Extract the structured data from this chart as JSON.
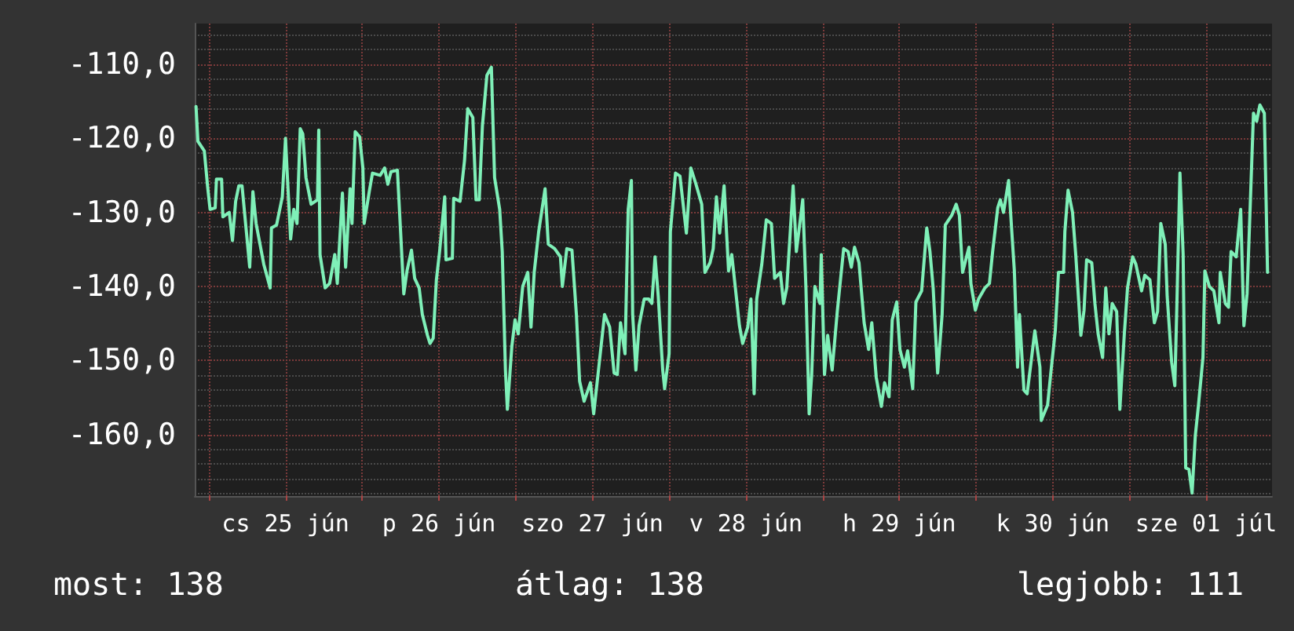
{
  "chart_data": {
    "type": "line",
    "xlim": [
      "--06-24T21:48",
      "--07-01T22:18"
    ],
    "ylim": [
      -168.3,
      -104.5
    ],
    "xticks": [
      {
        "value": "--06-25T00:00",
        "label": null
      },
      {
        "value": "--06-25T12:00",
        "label": "cs 25 jún"
      },
      {
        "value": "--06-26T00:00",
        "label": null
      },
      {
        "value": "--06-26T12:00",
        "label": "p 26 jún"
      },
      {
        "value": "--06-27T00:00",
        "label": null
      },
      {
        "value": "--06-27T12:00",
        "label": "szo 27 jún"
      },
      {
        "value": "--06-28T00:00",
        "label": null
      },
      {
        "value": "--06-28T12:00",
        "label": "v 28 jún"
      },
      {
        "value": "--06-29T00:00",
        "label": null
      },
      {
        "value": "--06-29T12:00",
        "label": "h 29 jún"
      },
      {
        "value": "--06-30T00:00",
        "label": null
      },
      {
        "value": "--06-30T12:00",
        "label": "k 30 jún"
      },
      {
        "value": "--07-01T00:00",
        "label": null
      },
      {
        "value": "--07-01T12:00",
        "label": "sze 01 júl"
      }
    ],
    "yticks": [
      {
        "value": -160,
        "label": "-160,0"
      },
      {
        "value": -150,
        "label": "-150,0"
      },
      {
        "value": -140,
        "label": "-140,0"
      },
      {
        "value": -130,
        "label": "-130,0"
      },
      {
        "value": -120,
        "label": "-120,0"
      },
      {
        "value": -110,
        "label": "-110,0"
      }
    ],
    "grid": true,
    "marker": "none",
    "line_style": "solid",
    "annotations": [
      "most: 138",
      "átlag: 138",
      "legjobb: 111"
    ],
    "series": [
      {
        "color": "#7ff0b8",
        "x": [
          "--06-24T22:00",
          "--06-24T22:18",
          "--06-24T23:18",
          "--06-24T23:48",
          "--06-25T00:12",
          "--06-25T01:00",
          "--06-25T01:12",
          "--06-25T02:00",
          "--06-25T02:12",
          "--06-25T03:12",
          "--06-25T03:42",
          "--06-25T04:12",
          "--06-25T04:42",
          "--06-25T05:12",
          "--06-25T05:42",
          "--06-25T06:24",
          "--06-25T06:54",
          "--06-25T07:24",
          "--06-25T08:36",
          "--06-25T09:36",
          "--06-25T09:48",
          "--06-25T10:36",
          "--06-25T11:30",
          "--06-25T12:00",
          "--06-25T12:18",
          "--06-25T12:48",
          "--06-25T13:18",
          "--06-25T13:48",
          "--06-25T14:18",
          "--06-25T14:42",
          "--06-25T15:12",
          "--06-25T16:00",
          "--06-25T17:00",
          "--06-25T17:12",
          "--06-25T17:24",
          "--06-25T18:12",
          "--06-25T18:54",
          "--06-25T19:42",
          "--06-25T20:06",
          "--06-25T20:54",
          "--06-25T21:24",
          "--06-25T22:06",
          "--06-25T22:24",
          "--06-25T22:54",
          "--06-25T23:36",
          "--06-26T00:06",
          "--06-26T00:18",
          "--06-26T01:06",
          "--06-26T01:36",
          "--06-26T02:48",
          "--06-26T03:30",
          "--06-26T04:00",
          "--06-26T04:30",
          "--06-26T05:30",
          "--06-26T06:00",
          "--06-26T06:30",
          "--06-26T07:00",
          "--06-26T07:42",
          "--06-26T08:12",
          "--06-26T08:54",
          "--06-26T09:24",
          "--06-26T10:12",
          "--06-26T10:36",
          "--06-26T11:06",
          "--06-26T11:36",
          "--06-26T12:06",
          "--06-26T12:54",
          "--06-26T13:06",
          "--06-26T14:06",
          "--06-26T14:18",
          "--06-26T15:18",
          "--06-26T16:00",
          "--06-26T16:30",
          "--06-26T17:18",
          "--06-26T17:48",
          "--06-26T18:18",
          "--06-26T18:48",
          "--06-26T19:30",
          "--06-26T20:12",
          "--06-26T20:42",
          "--06-26T21:30",
          "--06-26T21:54",
          "--06-26T22:24",
          "--06-26T22:42",
          "--06-26T23:24",
          "--06-26T23:54",
          "--06-27T00:24",
          "--06-27T01:06",
          "--06-27T01:54",
          "--06-27T02:24",
          "--06-27T02:54",
          "--06-27T03:36",
          "--06-27T04:36",
          "--06-27T05:06",
          "--06-27T06:06",
          "--06-27T07:00",
          "--06-27T07:18",
          "--06-27T08:00",
          "--06-27T08:48",
          "--06-27T09:30",
          "--06-27T10:00",
          "--06-27T10:42",
          "--06-27T11:42",
          "--06-27T12:12",
          "--06-27T12:54",
          "--06-27T13:54",
          "--06-27T14:42",
          "--06-27T15:24",
          "--06-27T15:54",
          "--06-27T16:24",
          "--06-27T17:06",
          "--06-27T17:36",
          "--06-27T18:06",
          "--06-27T18:18",
          "--06-27T18:48",
          "--06-27T19:18",
          "--06-27T20:06",
          "--06-27T20:48",
          "--06-27T21:18",
          "--06-27T21:48",
          "--06-27T22:18",
          "--06-27T23:00",
          "--06-27T23:18",
          "--06-28T00:00",
          "--06-28T00:12",
          "--06-28T01:00",
          "--06-28T01:42",
          "--06-28T02:42",
          "--06-28T03:24",
          "--06-28T04:12",
          "--06-28T05:06",
          "--06-28T05:36",
          "--06-28T06:24",
          "--06-28T06:54",
          "--06-28T07:24",
          "--06-28T07:54",
          "--06-28T08:36",
          "--06-28T09:18",
          "--06-28T09:48",
          "--06-28T11:00",
          "--06-28T11:30",
          "--06-28T12:18",
          "--06-28T12:48",
          "--06-28T13:18",
          "--06-28T13:42",
          "--06-28T14:30",
          "--06-28T15:12",
          "--06-28T16:00",
          "--06-28T16:30",
          "--06-28T17:24",
          "--06-28T17:54",
          "--06-28T18:24",
          "--06-28T19:24",
          "--06-28T19:54",
          "--06-28T20:54",
          "--06-28T21:24",
          "--06-28T21:54",
          "--06-28T22:18",
          "--06-28T22:48",
          "--06-28T23:36",
          "--06-28T23:48",
          "--06-29T00:18",
          "--06-29T00:48",
          "--06-29T01:30",
          "--06-29T02:18",
          "--06-29T03:18",
          "--06-29T04:00",
          "--06-29T04:30",
          "--06-29T05:00",
          "--06-29T05:42",
          "--06-29T06:30",
          "--06-29T07:12",
          "--06-29T07:42",
          "--06-29T08:24",
          "--06-29T09:12",
          "--06-29T09:42",
          "--06-29T10:24",
          "--06-29T10:54",
          "--06-29T11:36",
          "--06-29T12:06",
          "--06-29T12:48",
          "--06-29T13:18",
          "--06-29T14:06",
          "--06-29T14:36",
          "--06-29T15:30",
          "--06-29T16:18",
          "--06-29T16:48",
          "--06-29T17:18",
          "--06-29T18:00",
          "--06-29T18:42",
          "--06-29T19:12",
          "--06-29T20:12",
          "--06-29T20:54",
          "--06-29T21:24",
          "--06-29T21:54",
          "--06-29T22:54",
          "--06-29T23:12",
          "--06-29T23:54",
          "--06-30T00:24",
          "--06-30T01:24",
          "--06-30T02:06",
          "--06-30T02:36",
          "--06-30T03:24",
          "--06-30T03:48",
          "--06-30T04:18",
          "--06-30T05:06",
          "--06-30T05:36",
          "--06-30T06:00",
          "--06-30T06:30",
          "--06-30T06:48",
          "--06-30T07:30",
          "--06-30T08:00",
          "--06-30T08:42",
          "--06-30T09:12",
          "--06-30T10:00",
          "--06-30T10:12",
          "--06-30T11:12",
          "--06-30T11:42",
          "--06-30T12:24",
          "--06-30T12:54",
          "--06-30T13:42",
          "--06-30T13:54",
          "--06-30T14:24",
          "--06-30T15:06",
          "--06-30T15:36",
          "--06-30T16:24",
          "--06-30T16:54",
          "--06-30T17:18",
          "--06-30T18:06",
          "--06-30T18:36",
          "--06-30T19:06",
          "--06-30T19:48",
          "--06-30T20:18",
          "--06-30T20:48",
          "--06-30T21:18",
          "--06-30T22:00",
          "--06-30T22:30",
          "--06-30T23:12",
          "--06-30T23:42",
          "--07-01T00:30",
          "--07-01T01:00",
          "--07-01T01:54",
          "--07-01T02:24",
          "--07-01T03:12",
          "--07-01T03:54",
          "--07-01T04:24",
          "--07-01T04:54",
          "--07-01T05:36",
          "--07-01T05:54",
          "--07-01T06:36",
          "--07-01T07:06",
          "--07-01T07:24",
          "--07-01T07:54",
          "--07-01T08:24",
          "--07-01T08:48",
          "--07-01T09:18",
          "--07-01T09:48",
          "--07-01T10:18",
          "--07-01T10:48",
          "--07-01T11:30",
          "--07-01T11:48",
          "--07-01T12:30",
          "--07-01T13:12",
          "--07-01T14:00",
          "--07-01T14:12",
          "--07-01T15:00",
          "--07-01T15:30",
          "--07-01T15:54",
          "--07-01T16:42",
          "--07-01T17:24",
          "--07-01T17:54",
          "--07-01T18:24",
          "--07-01T18:54",
          "--07-01T19:24",
          "--07-01T19:54",
          "--07-01T20:24",
          "--07-01T21:06",
          "--07-01T21:36"
        ],
        "values": [
          -115.7,
          -120.4,
          -121.7,
          -126.4,
          -129.6,
          -129.4,
          -125.5,
          -125.5,
          -130.6,
          -130,
          -133.8,
          -128.5,
          -126.4,
          -126.4,
          -131,
          -137.4,
          -127.2,
          -131.5,
          -137,
          -140.2,
          -132.1,
          -131.7,
          -127.9,
          -120,
          -125.3,
          -133.6,
          -129.6,
          -131.5,
          -118.7,
          -119.4,
          -125.3,
          -128.9,
          -128.3,
          -118.9,
          -135.7,
          -140.2,
          -139.6,
          -135.7,
          -139.6,
          -127.4,
          -137.4,
          -126.8,
          -131.5,
          -119.1,
          -119.8,
          -124,
          -131.5,
          -127.2,
          -124.7,
          -125,
          -124,
          -126.2,
          -124.5,
          -124.3,
          -132.6,
          -141,
          -137.9,
          -135.1,
          -138.9,
          -140.2,
          -143.8,
          -146.6,
          -147.7,
          -147,
          -139.1,
          -135.3,
          -127.9,
          -136.4,
          -136.2,
          -128.1,
          -128.5,
          -123,
          -116,
          -117.2,
          -128.3,
          -128.3,
          -118.3,
          -111.5,
          -110.4,
          -125.3,
          -129.6,
          -135.3,
          -151.3,
          -156.6,
          -148.1,
          -144.5,
          -146.4,
          -140,
          -138.1,
          -145.5,
          -138.1,
          -132.6,
          -126.8,
          -134.3,
          -134.9,
          -136,
          -140,
          -134.9,
          -135.1,
          -143.8,
          -152.8,
          -155.5,
          -153,
          -157.2,
          -151.7,
          -143.8,
          -145.5,
          -151.7,
          -151.9,
          -144.9,
          -149.1,
          -129.6,
          -125.7,
          -143.8,
          -151.3,
          -145.3,
          -141.7,
          -141.7,
          -142.3,
          -136,
          -141.3,
          -151.3,
          -153.8,
          -149.1,
          -132.6,
          -124.7,
          -125.1,
          -132.8,
          -124,
          -126.2,
          -128.9,
          -138.1,
          -136.8,
          -134.9,
          -127.9,
          -132.8,
          -126.4,
          -137.9,
          -135.7,
          -145.3,
          -147.7,
          -145.5,
          -141.7,
          -154.5,
          -141.7,
          -137,
          -131,
          -131.5,
          -138.9,
          -138.1,
          -142.3,
          -140.2,
          -126.4,
          -135.3,
          -128.3,
          -140.2,
          -157.2,
          -151.9,
          -140,
          -142.3,
          -135.7,
          -151.9,
          -146.6,
          -151.3,
          -143.4,
          -134.9,
          -135.3,
          -137.4,
          -134.7,
          -136.8,
          -144.9,
          -148.5,
          -144.9,
          -152.3,
          -156.2,
          -153,
          -154.9,
          -144.5,
          -142.1,
          -148.5,
          -150.9,
          -148.7,
          -153.8,
          -142.1,
          -140.6,
          -132.1,
          -135.3,
          -140.2,
          -151.7,
          -143.8,
          -131.7,
          -130.4,
          -128.9,
          -130.4,
          -138.1,
          -134.7,
          -139.6,
          -143.2,
          -141.7,
          -140.2,
          -139.6,
          -135.3,
          -129.4,
          -128.3,
          -130,
          -125.7,
          -132.6,
          -137.9,
          -150.9,
          -143.8,
          -154,
          -154.5,
          -149.6,
          -146,
          -150.9,
          -158.1,
          -156,
          -151.7,
          -146,
          -138.1,
          -138.1,
          -132.6,
          -127,
          -130,
          -135.7,
          -146.6,
          -143.2,
          -136.4,
          -136.8,
          -142.3,
          -146.4,
          -149.6,
          -140.2,
          -146.4,
          -142.3,
          -143.4,
          -156.6,
          -146.4,
          -140.2,
          -136,
          -137,
          -140.6,
          -138.5,
          -139.1,
          -144.9,
          -143.4,
          -131.5,
          -134.3,
          -141.3,
          -150.2,
          -153.4,
          -143.2,
          -124.7,
          -135.7,
          -164.5,
          -164.7,
          -167.9,
          -160.2,
          -156,
          -149.6,
          -137.9,
          -140,
          -140.6,
          -144.9,
          -138.1,
          -142.3,
          -142.8,
          -135.3,
          -136,
          -129.6,
          -145.3,
          -141,
          -128.9,
          -116.6,
          -117.7,
          -115.5,
          -116.6,
          -138.1
        ]
      }
    ]
  }
}
